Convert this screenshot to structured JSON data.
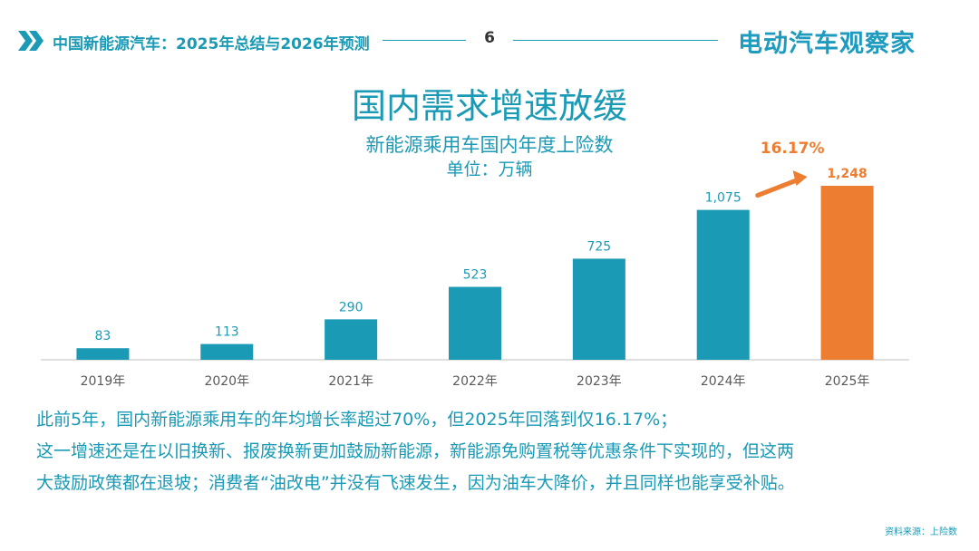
{
  "header": {
    "title": "中国新能源汽车：2025年总结与2026年预测",
    "page_number": "6",
    "brand": "电动汽车观察家"
  },
  "colors": {
    "teal": "#1b9ab6",
    "orange": "#ed7d31",
    "axis": "#bfbfbf"
  },
  "chart_data": {
    "type": "bar",
    "title": "国内需求增速放缓",
    "subtitle": "新能源乘用车国内年度上险数",
    "unit": "单位：万辆",
    "categories": [
      "2019年",
      "2020年",
      "2021年",
      "2022年",
      "2023年",
      "2024年",
      "2025年"
    ],
    "values": [
      83,
      113,
      290,
      523,
      725,
      1075,
      1248
    ],
    "value_labels": [
      "83",
      "113",
      "290",
      "523",
      "725",
      "1,075",
      "1,248"
    ],
    "highlight_index": 6,
    "growth_annotation": "16.17%",
    "ylim": [
      0,
      1248
    ],
    "grid": false
  },
  "commentary": [
    "此前5年，国内新能源乘用车的年均增长率超过70%，但2025年回落到仅16.17%；",
    "这一增速还是在以旧换新、报废换新更加鼓励新能源，新能源免购置税等优惠条件下实现的，但这两",
    "大鼓励政策都在退坡；消费者“油改电”并没有飞速发生，因为油车大降价，并且同样也能享受补贴。"
  ],
  "source": "资料来源：上险数"
}
